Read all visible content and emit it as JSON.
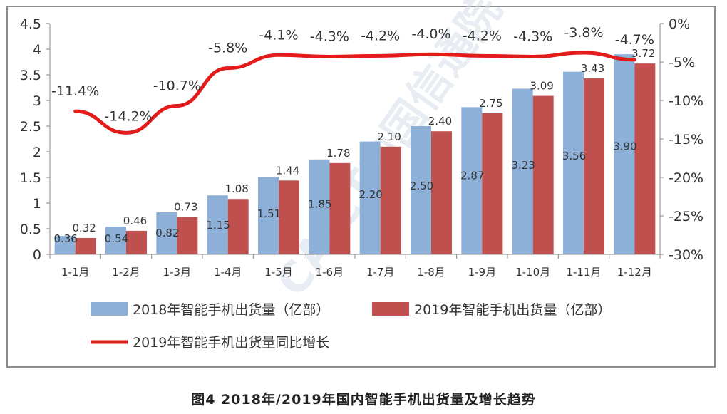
{
  "caption": "图4  2018年/2019年国内智能手机出货量及增长趋势",
  "watermark": "CAICT中国信通院",
  "colors": {
    "series_2018": "#8db0d9",
    "series_2019": "#c0504d",
    "line_growth": "#e31b1b",
    "axis": "#888888",
    "frame": "#8c8c8c"
  },
  "chart_data": {
    "type": "bar",
    "categories": [
      "1-1月",
      "1-2月",
      "1-3月",
      "1-4月",
      "1-5月",
      "1-6月",
      "1-7月",
      "1-8月",
      "1-9月",
      "1-10月",
      "1-11月",
      "1-12月"
    ],
    "series": [
      {
        "name": "2018年智能手机出货量（亿部）",
        "type": "bar",
        "axis": "left",
        "values": [
          0.36,
          0.54,
          0.82,
          1.15,
          1.51,
          1.85,
          2.2,
          2.5,
          2.87,
          3.23,
          3.56,
          3.9
        ],
        "labels": [
          "0.36",
          "0.54",
          "0.82",
          "1.15",
          "1.51",
          "1.85",
          "2.20",
          "2.50",
          "2.87",
          "3.23",
          "3.56",
          "3.90"
        ]
      },
      {
        "name": "2019年智能手机出货量（亿部）",
        "type": "bar",
        "axis": "left",
        "values": [
          0.32,
          0.46,
          0.73,
          1.08,
          1.44,
          1.78,
          2.1,
          2.4,
          2.75,
          3.09,
          3.43,
          3.72
        ],
        "labels": [
          "0.32",
          "0.46",
          "0.73",
          "1.08",
          "1.44",
          "1.78",
          "2.10",
          "2.40",
          "2.75",
          "3.09",
          "3.43",
          "3.72"
        ]
      },
      {
        "name": "2019年智能手机出货量同比增长",
        "type": "line",
        "axis": "right",
        "values": [
          -11.4,
          -14.2,
          -10.7,
          -5.8,
          -4.1,
          -4.3,
          -4.2,
          -4.0,
          -4.2,
          -4.3,
          -3.8,
          -4.7
        ],
        "labels": [
          "-11.4%",
          "-14.2%",
          "-10.7%",
          "-5.8%",
          "-4.1%",
          "-4.3%",
          "-4.2%",
          "-4.0%",
          "-4.2%",
          "-4.3%",
          "-3.8%",
          "-4.7%"
        ]
      }
    ],
    "y_left": {
      "range": [
        0,
        4.5
      ],
      "ticks": [
        "0",
        "0.5",
        "1",
        "1.5",
        "2",
        "2.5",
        "3",
        "3.5",
        "4",
        "4.5"
      ],
      "tick_values": [
        0,
        0.5,
        1,
        1.5,
        2,
        2.5,
        3,
        3.5,
        4,
        4.5
      ]
    },
    "y_right": {
      "range": [
        -30,
        0
      ],
      "ticks": [
        "-30%",
        "-25%",
        "-20%",
        "-15%",
        "-10%",
        "-5%",
        "0%"
      ],
      "tick_values": [
        -30,
        -25,
        -20,
        -15,
        -10,
        -5,
        0
      ]
    },
    "grid": false,
    "legend_position": "bottom"
  }
}
